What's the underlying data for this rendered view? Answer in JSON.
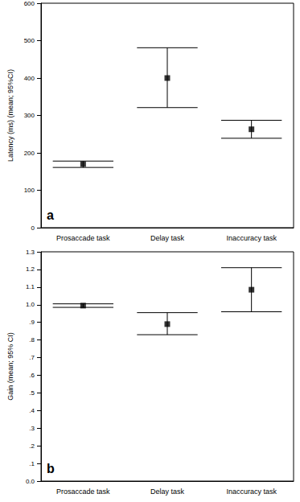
{
  "chart_data": [
    {
      "type": "errorbar",
      "annotation": "a",
      "y_label": "Latency (ms) (mean; 95%CI)",
      "categories": [
        "Prosaccade task",
        "Delay task",
        "Inaccuracy task"
      ],
      "values": [
        170,
        400,
        263
      ],
      "ci_lower": [
        161,
        321,
        239
      ],
      "ci_upper": [
        178,
        481,
        287
      ],
      "color": "#000000",
      "marker": "square",
      "ylim": [
        0,
        600
      ],
      "yticks": [
        0,
        100,
        200,
        300,
        400,
        500,
        600
      ],
      "grid": false
    },
    {
      "type": "errorbar",
      "annotation": "b",
      "y_label": "Gain (mean; 95% CI)",
      "categories": [
        "Prosaccade task",
        "Delay task",
        "Inaccuracy task"
      ],
      "values": [
        0.995,
        0.89,
        1.085
      ],
      "ci_lower": [
        0.985,
        0.83,
        0.96
      ],
      "ci_upper": [
        1.005,
        0.955,
        1.21
      ],
      "color": "#000000",
      "marker": "square",
      "ylim": [
        0,
        1.3
      ],
      "yticks": [
        {
          "value": 0,
          "label": "0.0"
        },
        {
          "value": 0.1,
          "label": ".1"
        },
        {
          "value": 0.2,
          "label": ".2"
        },
        {
          "value": 0.3,
          "label": ".3"
        },
        {
          "value": 0.4,
          "label": ".4"
        },
        {
          "value": 0.5,
          "label": ".5"
        },
        {
          "value": 0.6,
          "label": ".6"
        },
        {
          "value": 0.7,
          "label": ".7"
        },
        {
          "value": 0.8,
          "label": ".8"
        },
        {
          "value": 0.9,
          "label": ".9"
        },
        {
          "value": 1.0,
          "label": "1.0"
        },
        {
          "value": 1.1,
          "label": "1.1"
        },
        {
          "value": 1.2,
          "label": "1.2"
        },
        {
          "value": 1.3,
          "label": "1.3"
        }
      ],
      "grid": false
    }
  ]
}
